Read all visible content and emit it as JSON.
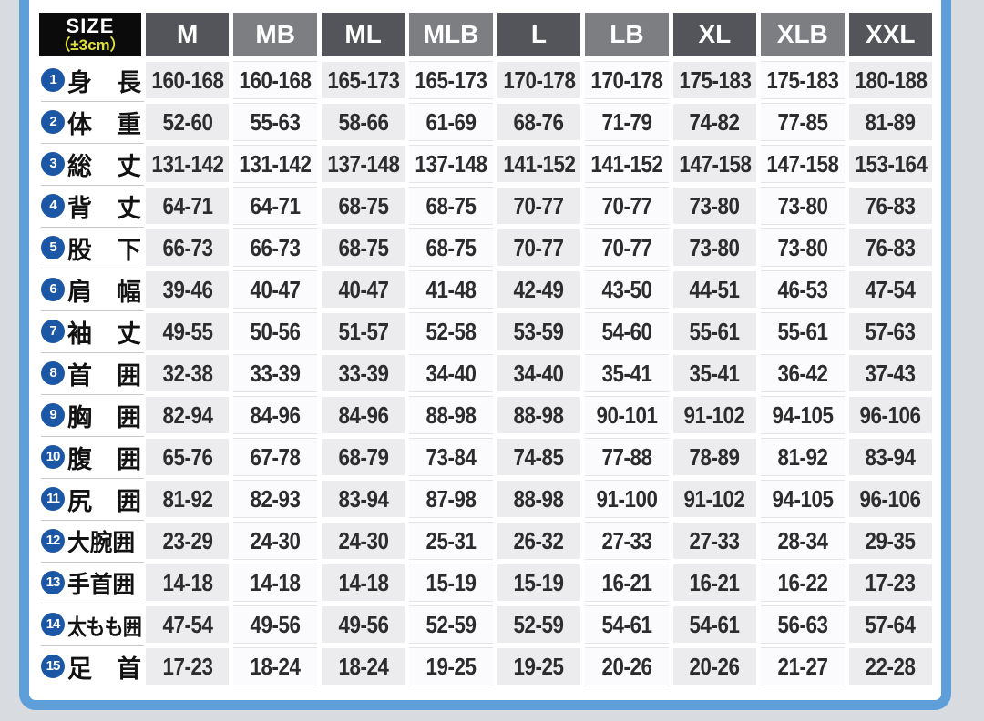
{
  "title": "garment-size-chart",
  "header": {
    "size_label": "SIZE",
    "size_tolerance": "（±3cm）"
  },
  "colors": {
    "page_bg": "#d8dbdf",
    "frame_blue": "#5e9fda",
    "size_box_bg": "#0b0b0b",
    "tolerance_yellow": "#dde03c",
    "header_dark_gray": "#54555a",
    "header_light_gray": "#7d7e82",
    "cell_gray": "#ececee",
    "cell_white": "#fbfbfd",
    "value_text": "#2c2c2f",
    "circle_blue": "#1c57a5",
    "separator": "#c9c9cc"
  },
  "chart_data": {
    "type": "table",
    "title": "SIZE（±3cm）",
    "columns": [
      "M",
      "MB",
      "ML",
      "MLB",
      "L",
      "LB",
      "XL",
      "XLB",
      "XXL"
    ],
    "rows": [
      {
        "num": "1",
        "label": "身　長",
        "values": [
          "160-168",
          "160-168",
          "165-173",
          "165-173",
          "170-178",
          "170-178",
          "175-183",
          "175-183",
          "180-188"
        ]
      },
      {
        "num": "2",
        "label": "体　重",
        "values": [
          "52-60",
          "55-63",
          "58-66",
          "61-69",
          "68-76",
          "71-79",
          "74-82",
          "77-85",
          "81-89"
        ]
      },
      {
        "num": "3",
        "label": "総　丈",
        "values": [
          "131-142",
          "131-142",
          "137-148",
          "137-148",
          "141-152",
          "141-152",
          "147-158",
          "147-158",
          "153-164"
        ]
      },
      {
        "num": "4",
        "label": "背　丈",
        "values": [
          "64-71",
          "64-71",
          "68-75",
          "68-75",
          "70-77",
          "70-77",
          "73-80",
          "73-80",
          "76-83"
        ]
      },
      {
        "num": "5",
        "label": "股　下",
        "values": [
          "66-73",
          "66-73",
          "68-75",
          "68-75",
          "70-77",
          "70-77",
          "73-80",
          "73-80",
          "76-83"
        ]
      },
      {
        "num": "6",
        "label": "肩　幅",
        "values": [
          "39-46",
          "40-47",
          "40-47",
          "41-48",
          "42-49",
          "43-50",
          "44-51",
          "46-53",
          "47-54"
        ]
      },
      {
        "num": "7",
        "label": "袖　丈",
        "values": [
          "49-55",
          "50-56",
          "51-57",
          "52-58",
          "53-59",
          "54-60",
          "55-61",
          "55-61",
          "57-63"
        ]
      },
      {
        "num": "8",
        "label": "首　囲",
        "values": [
          "32-38",
          "33-39",
          "33-39",
          "34-40",
          "34-40",
          "35-41",
          "35-41",
          "36-42",
          "37-43"
        ]
      },
      {
        "num": "9",
        "label": "胸　囲",
        "values": [
          "82-94",
          "84-96",
          "84-96",
          "88-98",
          "88-98",
          "90-101",
          "91-102",
          "94-105",
          "96-106"
        ]
      },
      {
        "num": "10",
        "label": "腹　囲",
        "values": [
          "65-76",
          "67-78",
          "68-79",
          "73-84",
          "74-85",
          "77-88",
          "78-89",
          "81-92",
          "83-94"
        ]
      },
      {
        "num": "11",
        "label": "尻　囲",
        "values": [
          "81-92",
          "82-93",
          "83-94",
          "87-98",
          "88-98",
          "91-100",
          "91-102",
          "94-105",
          "96-106"
        ]
      },
      {
        "num": "12",
        "label": "大腕囲",
        "values": [
          "23-29",
          "24-30",
          "24-30",
          "25-31",
          "26-32",
          "27-33",
          "27-33",
          "28-34",
          "29-35"
        ]
      },
      {
        "num": "13",
        "label": "手首囲",
        "values": [
          "14-18",
          "14-18",
          "14-18",
          "15-19",
          "15-19",
          "16-21",
          "16-21",
          "16-22",
          "17-23"
        ]
      },
      {
        "num": "14",
        "label": "太もも囲",
        "values": [
          "47-54",
          "49-56",
          "49-56",
          "52-59",
          "52-59",
          "54-61",
          "54-61",
          "56-63",
          "57-64"
        ]
      },
      {
        "num": "15",
        "label": "足　首",
        "values": [
          "17-23",
          "18-24",
          "18-24",
          "19-25",
          "19-25",
          "20-26",
          "20-26",
          "21-27",
          "22-28"
        ]
      }
    ]
  }
}
